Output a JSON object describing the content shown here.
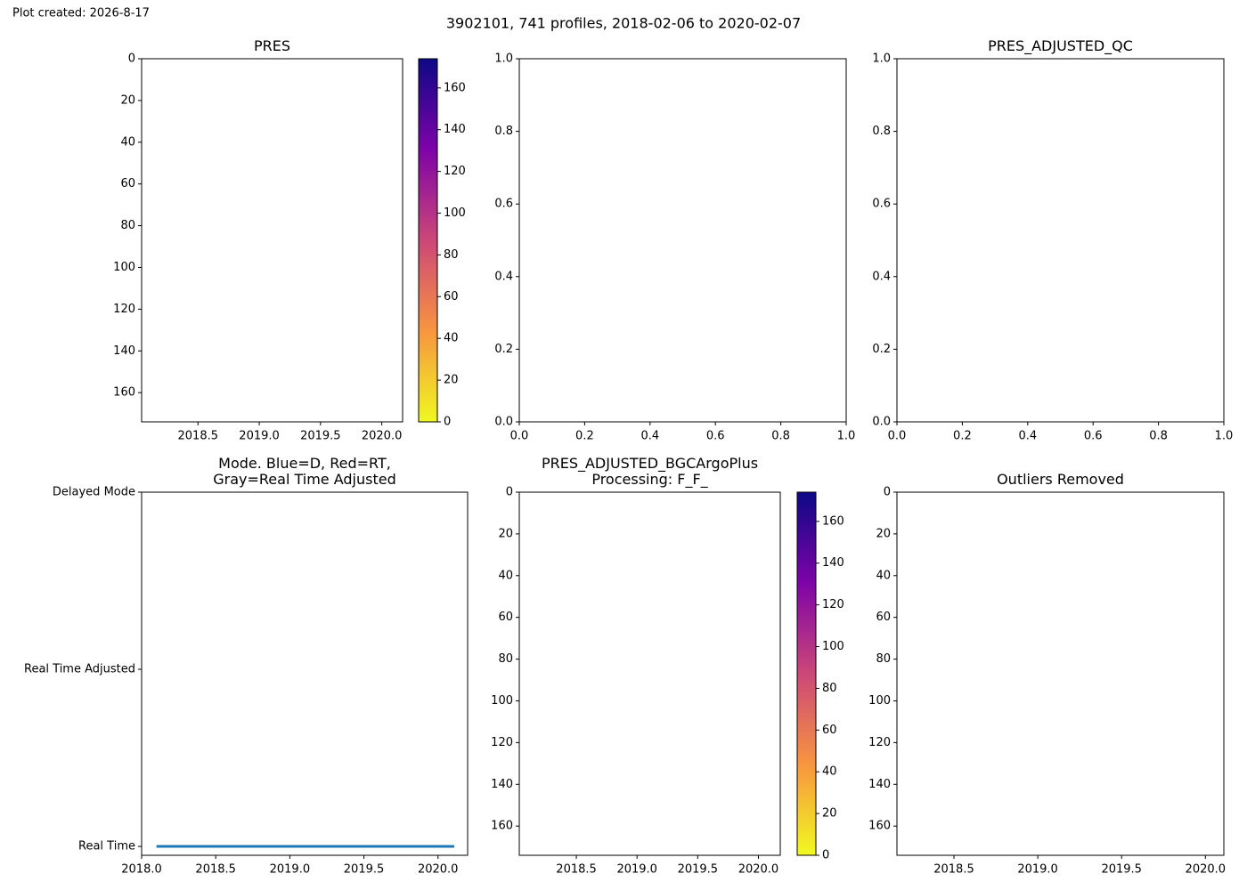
{
  "title": "3902101, 741 profiles, 2018-02-06 to 2020-02-07",
  "created": "Plot created: 2026-8-17",
  "chart_data": [
    {
      "type": "scatter",
      "title": "PRES",
      "xlim": [
        2018.04,
        2020.17
      ],
      "xticks": [
        2018.5,
        {
          "value": 2019,
          "label": "2019.0"
        },
        2019.5,
        {
          "value": 2020,
          "label": "2020.0"
        }
      ],
      "ylim": [
        174,
        0
      ],
      "yticks": [
        0,
        20,
        40,
        60,
        80,
        100,
        120,
        140,
        160
      ],
      "colorbar": {
        "lim": [
          0,
          174
        ],
        "ticks": [
          0,
          20,
          40,
          60,
          80,
          100,
          120,
          140,
          160
        ],
        "colormap": "plasma_r"
      }
    },
    {
      "type": "scatter",
      "xlim": [
        0,
        1
      ],
      "xticks": [
        {
          "value": 0,
          "label": "0.0"
        },
        0.2,
        0.4,
        0.6,
        0.8,
        {
          "value": 1,
          "label": "1.0"
        }
      ],
      "ylim": [
        0,
        1
      ],
      "yticks": [
        {
          "value": 0,
          "label": "0.0"
        },
        0.2,
        0.4,
        0.6,
        0.8,
        {
          "value": 1,
          "label": "1.0"
        }
      ]
    },
    {
      "type": "scatter",
      "title": "PRES_ADJUSTED_QC",
      "xlim": [
        0,
        1
      ],
      "xticks": [
        {
          "value": 0,
          "label": "0.0"
        },
        0.2,
        0.4,
        0.6,
        0.8,
        {
          "value": 1,
          "label": "1.0"
        }
      ],
      "ylim": [
        0,
        1
      ],
      "yticks": [
        {
          "value": 0,
          "label": "0.0"
        },
        0.2,
        0.4,
        0.6,
        0.8,
        {
          "value": 1,
          "label": "1.0"
        }
      ]
    },
    {
      "type": "line",
      "title": "Mode. Blue=D, Red=RT,\nGray=Real Time Adjusted",
      "xlim": [
        2018.0,
        2020.2
      ],
      "xticks": [
        {
          "value": 2018,
          "label": "2018.0"
        },
        2018.5,
        {
          "value": 2019,
          "label": "2019.0"
        },
        2019.5,
        {
          "value": 2020,
          "label": "2020.0"
        }
      ],
      "ylim": [
        0.95,
        3
      ],
      "yticks": [
        {
          "value": 1,
          "label": "Real Time"
        },
        {
          "value": 2,
          "label": "Real Time Adjusted"
        },
        {
          "value": 3,
          "label": "Delayed Mode"
        }
      ],
      "x": [
        2018.1,
        2020.11
      ],
      "series": [
        {
          "color": "#1f77b4",
          "values": [
            1,
            1
          ]
        }
      ]
    },
    {
      "type": "scatter",
      "title": "PRES_ADJUSTED_BGCArgoPlus\nProcessing: F_F_",
      "xlim": [
        2018.03,
        2020.18
      ],
      "xticks": [
        2018.5,
        {
          "value": 2019,
          "label": "2019.0"
        },
        2019.5,
        {
          "value": 2020,
          "label": "2020.0"
        }
      ],
      "ylim": [
        174,
        0
      ],
      "yticks": [
        0,
        20,
        40,
        60,
        80,
        100,
        120,
        140,
        160
      ],
      "colorbar": {
        "lim": [
          0,
          174
        ],
        "ticks": [
          0,
          20,
          40,
          60,
          80,
          100,
          120,
          140,
          160
        ],
        "colormap": "plasma_r"
      }
    },
    {
      "type": "scatter",
      "title": "Outliers Removed",
      "xlim": [
        2018.16,
        2020.11
      ],
      "xticks": [
        2018.5,
        {
          "value": 2019,
          "label": "2019.0"
        },
        2019.5,
        {
          "value": 2020,
          "label": "2020.0"
        }
      ],
      "ylim": [
        174,
        0
      ],
      "yticks": [
        0,
        20,
        40,
        60,
        80,
        100,
        120,
        140,
        160
      ]
    }
  ]
}
